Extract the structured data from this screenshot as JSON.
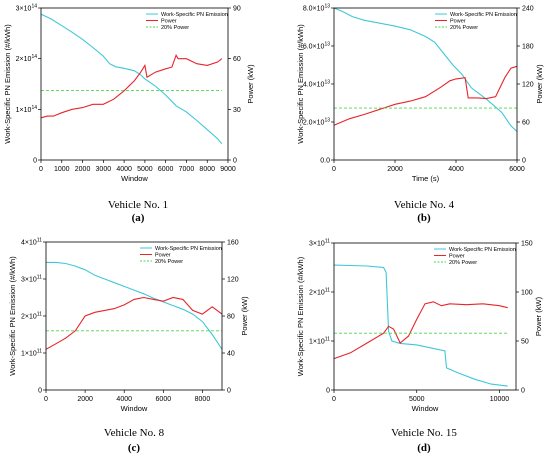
{
  "legend": {
    "emission": "Work-Specific PN Emission",
    "power": "Power",
    "threshold": "20% Power"
  },
  "colors": {
    "emission": "#3fc8d8",
    "power": "#e8242a",
    "threshold": "#4cd64c"
  },
  "chart_data": [
    {
      "type": "line",
      "caption": "Vehicle No. 1",
      "label": "(a)",
      "xlabel": "Window",
      "ylabel_left": "Work-Specific PN Emission (#/kWh)",
      "ylabel_right": "Power (kW)",
      "xlim": [
        0,
        9000
      ],
      "ylim_left": [
        0,
        300000000000000.0
      ],
      "ylim_right": [
        0,
        90
      ],
      "x_ticks": [
        "0",
        "1000",
        "2000",
        "3000",
        "4000",
        "5000",
        "6000",
        "7000",
        "8000",
        "9000"
      ],
      "x_tick_values": [
        0,
        1000,
        2000,
        3000,
        4000,
        5000,
        6000,
        7000,
        8000,
        9000
      ],
      "y_left_ticks": [
        "0",
        "1×10^14",
        "2×10^14",
        "3×10^14"
      ],
      "y_left_tick_values": [
        0,
        100000000000000.0,
        200000000000000.0,
        300000000000000.0
      ],
      "y_right_ticks": [
        "0",
        "30",
        "60",
        "90"
      ],
      "y_right_tick_values": [
        0,
        30,
        60,
        90
      ],
      "threshold_power": 41.2,
      "series": [
        {
          "name": "Work-Specific PN Emission",
          "axis": "left",
          "x": [
            0,
            500,
            1000,
            1500,
            2000,
            2500,
            3000,
            3300,
            3600,
            4000,
            4500,
            4800,
            5000,
            5500,
            6000,
            6500,
            7000,
            7500,
            8000,
            8500,
            8700
          ],
          "y": [
            288000000000000.0,
            278000000000000.0,
            265000000000000.0,
            252000000000000.0,
            238000000000000.0,
            222000000000000.0,
            205000000000000.0,
            190000000000000.0,
            184000000000000.0,
            181000000000000.0,
            176000000000000.0,
            168000000000000.0,
            160000000000000.0,
            146000000000000.0,
            128000000000000.0,
            107000000000000.0,
            95000000000000.0,
            78000000000000.0,
            60000000000000.0,
            42000000000000.0,
            32000000000000.0
          ]
        },
        {
          "name": "Power",
          "axis": "right",
          "x": [
            0,
            300,
            600,
            1000,
            1500,
            2000,
            2500,
            3000,
            3500,
            4000,
            4500,
            4800,
            5000,
            5100,
            5500,
            6000,
            6300,
            6500,
            6600,
            7000,
            7500,
            8000,
            8500,
            8700
          ],
          "y": [
            25,
            26,
            26,
            28,
            30,
            31,
            33,
            33,
            36,
            41,
            47,
            52,
            56,
            49,
            52,
            54,
            55,
            62,
            60,
            60,
            57,
            56,
            58,
            60
          ]
        },
        {
          "name": "20% Power",
          "axis": "right",
          "x": [
            0,
            8700
          ],
          "y": [
            41.2,
            41.2
          ]
        }
      ]
    },
    {
      "type": "line",
      "caption": "Vehicle No. 4",
      "label": "(b)",
      "xlabel": "Time (s)",
      "ylabel_left": "Work-Specific PN Emission (#/kWh)",
      "ylabel_right": "Power (kW)",
      "xlim": [
        0,
        6000
      ],
      "ylim_left": [
        0,
        80000000000000.0
      ],
      "ylim_right": [
        0,
        240
      ],
      "x_ticks": [
        "0",
        "2000",
        "4000",
        "6000"
      ],
      "x_tick_values": [
        0,
        2000,
        4000,
        6000
      ],
      "y_left_ticks": [
        "0.0",
        "2.0×10^13",
        "4.0×10^13",
        "6.0×10^13",
        "8.0×10^13"
      ],
      "y_left_tick_values": [
        0,
        20000000000000.0,
        40000000000000.0,
        60000000000000.0,
        80000000000000.0
      ],
      "y_right_ticks": [
        "0",
        "60",
        "120",
        "180",
        "240"
      ],
      "y_right_tick_values": [
        0,
        60,
        120,
        180,
        240
      ],
      "threshold_power": 82,
      "series": [
        {
          "name": "Work-Specific PN Emission",
          "axis": "left",
          "x": [
            0,
            300,
            600,
            1000,
            1500,
            2000,
            2500,
            3000,
            3300,
            3600,
            3900,
            4200,
            4500,
            5000,
            5500,
            5800,
            6000
          ],
          "y": [
            80000000000000.0,
            78000000000000.0,
            75500000000000.0,
            73500000000000.0,
            72000000000000.0,
            70500000000000.0,
            68500000000000.0,
            65000000000000.0,
            62000000000000.0,
            56000000000000.0,
            50000000000000.0,
            45000000000000.0,
            38000000000000.0,
            32000000000000.0,
            25000000000000.0,
            18000000000000.0,
            15000000000000.0
          ]
        },
        {
          "name": "Power",
          "axis": "right",
          "x": [
            0,
            500,
            1000,
            1500,
            2000,
            2500,
            3000,
            3500,
            3800,
            4000,
            4300,
            4400,
            4700,
            5000,
            5300,
            5600,
            5800,
            6000
          ],
          "y": [
            55,
            65,
            72,
            80,
            88,
            93,
            100,
            115,
            125,
            128,
            130,
            98,
            98,
            97,
            100,
            130,
            145,
            148
          ]
        },
        {
          "name": "20% Power",
          "axis": "right",
          "x": [
            0,
            6000
          ],
          "y": [
            82,
            82
          ]
        }
      ]
    },
    {
      "type": "line",
      "caption": "Vehicle No. 8",
      "label": "(c)",
      "xlabel": "Window",
      "ylabel_left": "Work-Specific PN Emission (#/kWh)",
      "ylabel_right": "Power (kW)",
      "xlim": [
        0,
        9000
      ],
      "ylim_left": [
        0,
        400000000000.0
      ],
      "ylim_right": [
        0,
        160
      ],
      "x_ticks": [
        "0",
        "2000",
        "4000",
        "6000",
        "8000"
      ],
      "x_tick_values": [
        0,
        2000,
        4000,
        6000,
        8000
      ],
      "y_left_ticks": [
        "0",
        "1×10^11",
        "2×10^11",
        "3×10^11",
        "4×10^11"
      ],
      "y_left_tick_values": [
        0,
        100000000000.0,
        200000000000.0,
        300000000000.0,
        400000000000.0
      ],
      "y_right_ticks": [
        "0",
        "40",
        "80",
        "120",
        "160"
      ],
      "y_right_tick_values": [
        0,
        40,
        80,
        120,
        160
      ],
      "threshold_power": 64,
      "series": [
        {
          "name": "Work-Specific PN Emission",
          "axis": "left",
          "x": [
            0,
            500,
            1000,
            1500,
            2000,
            2500,
            3000,
            3500,
            4000,
            4500,
            5000,
            5500,
            6000,
            6500,
            7000,
            7500,
            8000,
            8500,
            9000
          ],
          "y": [
            345000000000.0,
            345000000000.0,
            342000000000.0,
            335000000000.0,
            325000000000.0,
            310000000000.0,
            300000000000.0,
            290000000000.0,
            280000000000.0,
            270000000000.0,
            260000000000.0,
            248000000000.0,
            238000000000.0,
            228000000000.0,
            218000000000.0,
            205000000000.0,
            185000000000.0,
            150000000000.0,
            110000000000.0
          ]
        },
        {
          "name": "Power",
          "axis": "right",
          "x": [
            0,
            500,
            1000,
            1500,
            2000,
            2500,
            3000,
            3500,
            4000,
            4500,
            5000,
            5500,
            6000,
            6500,
            7000,
            7500,
            8000,
            8500,
            9000
          ],
          "y": [
            44,
            50,
            56,
            64,
            80,
            84,
            86,
            88,
            92,
            98,
            100,
            98,
            96,
            100,
            98,
            86,
            82,
            90,
            82
          ]
        },
        {
          "name": "20% Power",
          "axis": "right",
          "x": [
            0,
            9000
          ],
          "y": [
            64,
            64
          ]
        }
      ]
    },
    {
      "type": "line",
      "caption": "Vehicle No. 15",
      "label": "(d)",
      "xlabel": "Window",
      "ylabel_left": "Work-Specific PN Emission (#/kWh)",
      "ylabel_right": "Power (kW)",
      "xlim": [
        0,
        11000
      ],
      "ylim_left": [
        0,
        300000000000.0
      ],
      "ylim_right": [
        0,
        150
      ],
      "x_ticks": [
        "0",
        "5000",
        "10000"
      ],
      "x_tick_values": [
        0,
        5000,
        10000
      ],
      "y_left_ticks": [
        "0",
        "1×10^11",
        "2×10^11",
        "3×10^11"
      ],
      "y_left_tick_values": [
        0,
        100000000000.0,
        200000000000.0,
        300000000000.0
      ],
      "y_right_ticks": [
        "0",
        "50",
        "100",
        "150"
      ],
      "y_right_tick_values": [
        0,
        50,
        100,
        150
      ],
      "threshold_power": 58,
      "series": [
        {
          "name": "Work-Specific PN Emission",
          "axis": "left",
          "x": [
            0,
            1000,
            2000,
            3000,
            3150,
            3300,
            3500,
            4000,
            5000,
            6000,
            6700,
            6800,
            7500,
            8500,
            9500,
            10500
          ],
          "y": [
            255000000000.0,
            254000000000.0,
            253000000000.0,
            250000000000.0,
            240000000000.0,
            120000000000.0,
            100000000000.0,
            95000000000.0,
            92000000000.0,
            85000000000.0,
            80000000000.0,
            45000000000.0,
            35000000000.0,
            22000000000.0,
            12000000000.0,
            8000000000.0
          ]
        },
        {
          "name": "Power",
          "axis": "right",
          "x": [
            0,
            1000,
            2000,
            3000,
            3300,
            3600,
            4000,
            4500,
            5000,
            5500,
            6000,
            6500,
            7000,
            8000,
            9000,
            10000,
            10500
          ],
          "y": [
            32,
            38,
            48,
            58,
            65,
            62,
            48,
            55,
            72,
            88,
            90,
            86,
            88,
            87,
            88,
            86,
            84
          ]
        },
        {
          "name": "20% Power",
          "axis": "right",
          "x": [
            0,
            10500
          ],
          "y": [
            58,
            58
          ]
        }
      ]
    }
  ]
}
